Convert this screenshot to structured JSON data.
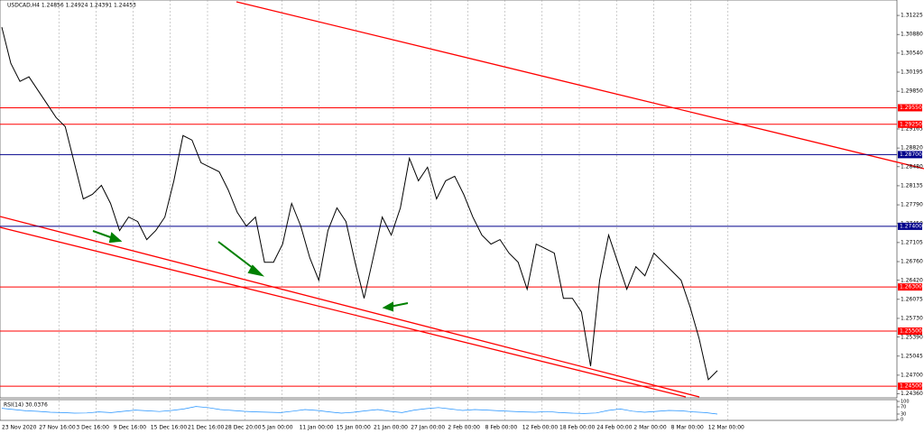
{
  "chart_data": {
    "type": "line",
    "title": "USDCAD,H4  1.24856 1.24924 1.24391 1.24453",
    "color": "#000000",
    "values": [
      1.31012,
      1.30356,
      1.30028,
      1.3011,
      1.29864,
      1.29618,
      1.29372,
      1.29208,
      1.28553,
      1.27897,
      1.27979,
      1.28143,
      1.27815,
      1.27323,
      1.27569,
      1.27487,
      1.27159,
      1.27323,
      1.27569,
      1.28225,
      1.29045,
      1.28963,
      1.28553,
      1.28471,
      1.28389,
      1.28061,
      1.27651,
      1.27405,
      1.27569,
      1.26749,
      1.26749,
      1.27077,
      1.27815,
      1.27405,
      1.26831,
      1.26422,
      1.27323,
      1.27733,
      1.27487,
      1.26749,
      1.26094,
      1.26831,
      1.27569,
      1.27241,
      1.27733,
      1.28635,
      1.28225,
      1.28471,
      1.27897,
      1.28225,
      1.28307,
      1.27979,
      1.27569,
      1.27241,
      1.27077,
      1.27159,
      1.26914,
      1.26749,
      1.26258,
      1.27077,
      1.26995,
      1.26914,
      1.26094,
      1.26094,
      1.25848,
      1.24864,
      1.26422,
      1.27241,
      1.26749,
      1.26258,
      1.26668,
      1.26504,
      1.26914,
      1.26749,
      1.26586,
      1.26422,
      1.2593,
      1.25356,
      1.24619,
      1.24782
    ],
    "x_labels": [
      "23 Nov 2020",
      "27 Nov 16:00",
      "3 Dec 16:00",
      "9 Dec 16:00",
      "15 Dec 16:00",
      "21 Dec 16:00",
      "28 Dec 20:00",
      "5 Jan 00:00",
      "11 Jan 00:00",
      "15 Jan 00:00",
      "21 Jan 00:00",
      "27 Jan 00:00",
      "2 Feb 00:00",
      "8 Feb 00:00",
      "12 Feb 00:00",
      "18 Feb 00:00",
      "24 Feb 00:00",
      "2 Mar 00:00",
      "8 Mar 00:00",
      "12 Mar 00:00"
    ],
    "ylim": [
      1.2429,
      1.31504
    ],
    "yticks": [
      1.31225,
      {
        "value": 1.3088,
        "label": "1.30880"
      },
      {
        "value": 1.3054,
        "label": "1.30540"
      },
      1.30195,
      {
        "value": 1.2985,
        "label": "1.29850"
      },
      1.29165,
      {
        "value": 1.2882,
        "label": "1.28820"
      },
      {
        "value": 1.2848,
        "label": "1.28480"
      },
      1.28135,
      {
        "value": 1.2779,
        "label": "1.27790"
      },
      {
        "value": 1.2745,
        "label": "1.27450"
      },
      1.27105,
      {
        "value": 1.2676,
        "label": "1.26760"
      },
      {
        "value": 1.2642,
        "label": "1.26420"
      },
      1.26075,
      {
        "value": 1.2573,
        "label": "1.25730"
      },
      {
        "value": 1.2539,
        "label": "1.25390"
      },
      1.25045,
      {
        "value": 1.247,
        "label": "1.24700"
      },
      {
        "value": 1.2436,
        "label": "1.24360"
      }
    ],
    "levels": [
      {
        "value": 1.2955,
        "label": "1.29550",
        "color": "#ff0000"
      },
      {
        "value": 1.2925,
        "label": "1.29250",
        "color": "#ff0000"
      },
      {
        "value": 1.287,
        "label": "1.28700",
        "color": "#00008b"
      },
      {
        "value": 1.274,
        "label": "1.27400",
        "color": "#00008b"
      },
      {
        "value": 1.263,
        "label": "1.26300",
        "color": "#ff0000"
      },
      {
        "value": 1.255,
        "label": "1.25500",
        "color": "#ff0000"
      },
      {
        "value": 1.245,
        "label": "1.24500",
        "color": "#ff0000"
      }
    ],
    "rsi": {
      "title": "RSI(14) 30.0376",
      "color": "#1e90ff",
      "ylim": [
        0,
        100
      ],
      "yticks": [
        0,
        30,
        70,
        100
      ],
      "values": [
        62,
        55,
        48,
        45,
        40,
        38,
        35,
        36,
        42,
        38,
        45,
        52,
        48,
        44,
        50,
        58,
        72,
        66,
        55,
        50,
        45,
        42,
        40,
        38,
        46,
        55,
        50,
        42,
        35,
        40,
        48,
        55,
        45,
        38,
        52,
        60,
        66,
        58,
        50,
        55,
        52,
        48,
        45,
        42,
        40,
        44,
        38,
        35,
        33,
        36,
        50,
        58,
        46,
        40,
        45,
        50,
        48,
        42,
        38,
        30
      ]
    }
  }
}
